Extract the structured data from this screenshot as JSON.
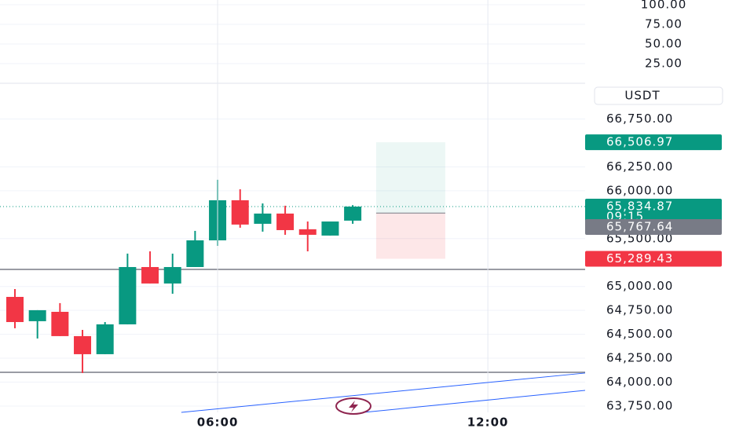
{
  "chart_data": {
    "type": "candlestick",
    "currency": "USDT",
    "x": [
      0,
      1,
      2,
      3,
      4,
      5,
      6,
      7,
      8,
      9,
      10,
      11,
      12,
      13,
      14,
      15
    ],
    "open": [
      64891,
      64637,
      64735,
      64481,
      64292,
      64604,
      65203,
      65031,
      65203,
      65482,
      65901,
      65655,
      65762,
      65598,
      65532,
      65688
    ],
    "high": [
      64973,
      64752,
      64826,
      64546,
      64628,
      65343,
      65367,
      65343,
      65581,
      66115,
      66016,
      65868,
      65844,
      65679,
      65679,
      65850
    ],
    "low": [
      64563,
      64456,
      64481,
      64095,
      64292,
      64604,
      65031,
      64924,
      65203,
      65425,
      65614,
      65573,
      65540,
      65367,
      65532,
      65655
    ],
    "close": [
      64628,
      64752,
      64481,
      64292,
      64604,
      65203,
      65031,
      65203,
      65482,
      65901,
      65647,
      65762,
      65589,
      65540,
      65679,
      65834.87
    ],
    "up_color": "#089981",
    "down_color": "#f23645",
    "xlim": [
      -0.663,
      25.32
    ],
    "xticks": [
      {
        "value": 9,
        "label": "06:00"
      },
      {
        "value": 21,
        "label": "12:00"
      }
    ],
    "ylim": [
      63684,
      67124
    ],
    "yticks": [
      {
        "value": 66750,
        "label": "66,750.00"
      },
      {
        "value": 66250,
        "label": "66,250.00"
      },
      {
        "value": 66000,
        "label": "66,000.00"
      },
      {
        "value": 65500,
        "label": "65,500.00"
      },
      {
        "value": 65000,
        "label": "65,000.00"
      },
      {
        "value": 64750,
        "label": "64,750.00"
      },
      {
        "value": 64500,
        "label": "64,500.00"
      },
      {
        "value": 64250,
        "label": "64,250.00"
      },
      {
        "value": 64000,
        "label": "64,000.00"
      },
      {
        "value": 63750,
        "label": "63,750.00"
      }
    ],
    "indicator_pane": {
      "ylim": [
        0,
        106
      ],
      "yticks": [
        {
          "value": 100,
          "label": "100.00"
        },
        {
          "value": 75,
          "label": "75.00"
        },
        {
          "value": 50,
          "label": "50.00"
        },
        {
          "value": 25,
          "label": "25.00"
        }
      ]
    },
    "horizontal_lines": [
      65178,
      64103
    ],
    "trend_lines": [
      {
        "x": [
          7.39,
          25.32
        ],
        "y": [
          63684,
          64095
        ]
      },
      {
        "x": [
          15.49,
          25.32
        ],
        "y": [
          63684,
          63914
        ]
      }
    ],
    "position": {
      "x": [
        16.04,
        19.11
      ],
      "take_profit": {
        "value": 66506.97,
        "label": "66,506.97"
      },
      "entry": {
        "value": 65767.64,
        "label": "65,767.64"
      },
      "stop_loss": {
        "value": 65289.43,
        "label": "65,289.43"
      }
    },
    "last_price": {
      "value": 65834.87,
      "label": "65,834.87",
      "countdown": "09:15"
    }
  }
}
